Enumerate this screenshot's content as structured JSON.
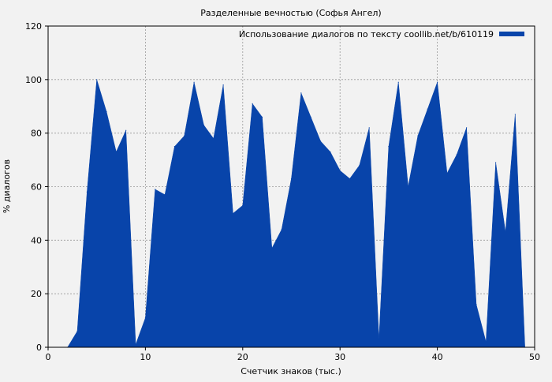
{
  "chart_data": {
    "type": "area",
    "title": "Разделенные вечностью (Софья Ангел)",
    "xlabel": "Счетчик знаков (тыс.)",
    "ylabel": "% диалогов",
    "xlim": [
      0,
      50
    ],
    "ylim": [
      0,
      120
    ],
    "x_ticks": [
      0,
      10,
      20,
      30,
      40,
      50
    ],
    "y_ticks": [
      0,
      20,
      40,
      60,
      80,
      100,
      120
    ],
    "grid": true,
    "legend_position": "top-right",
    "series": [
      {
        "name": "Использование диалогов по тексту coollib.net/b/610119",
        "color": "#0844aa",
        "x": [
          2,
          3,
          4,
          5,
          6,
          7,
          8,
          9,
          10,
          11,
          12,
          13,
          14,
          15,
          16,
          17,
          18,
          19,
          20,
          21,
          22,
          23,
          24,
          25,
          26,
          27,
          28,
          29,
          30,
          31,
          32,
          33,
          34,
          35,
          36,
          37,
          38,
          39,
          40,
          41,
          42,
          43,
          44,
          45,
          46,
          47,
          48,
          49
        ],
        "values": [
          0,
          6,
          58,
          100,
          88,
          73,
          81,
          1,
          11,
          59,
          57,
          75,
          79,
          99,
          83,
          78,
          98,
          50,
          53,
          91,
          86,
          37,
          44,
          63,
          95,
          86,
          77,
          73,
          66,
          63,
          68,
          82,
          3,
          75,
          99,
          60,
          79,
          89,
          99,
          65,
          72,
          82,
          16,
          2,
          69,
          43,
          87,
          0
        ]
      }
    ]
  }
}
